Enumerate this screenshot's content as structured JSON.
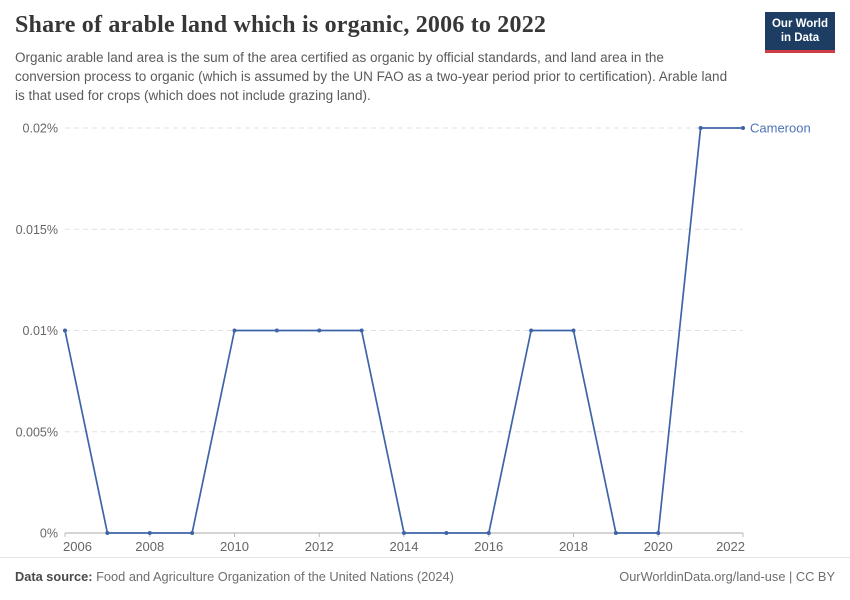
{
  "header": {
    "title": "Share of arable land which is organic, 2006 to 2022",
    "subtitle": "Organic arable land area is the sum of the area certified as organic by official standards, and land area in the conversion process to organic (which is assumed by the UN FAO as a two-year period prior to certification). Arable land is that used for crops (which does not include grazing land).",
    "logo": {
      "line1": "Our World",
      "line2": "in Data",
      "bg_color": "#1d3d63",
      "accent_color": "#d13d43",
      "text_color": "#ffffff"
    }
  },
  "chart_data": {
    "type": "line",
    "title": "Share of arable land which is organic, 2006 to 2022",
    "xlabel": "",
    "ylabel": "",
    "unit": "%",
    "entity": "Cameroon",
    "x": [
      2006,
      2007,
      2008,
      2009,
      2010,
      2011,
      2012,
      2013,
      2014,
      2015,
      2016,
      2017,
      2018,
      2019,
      2020,
      2021,
      2022
    ],
    "series": [
      {
        "name": "Cameroon",
        "values": [
          0.01,
          0,
          0,
          0,
          0.01,
          0.01,
          0.01,
          0.01,
          0,
          0,
          0,
          0.01,
          0.01,
          0,
          0,
          0.02,
          0.02
        ]
      }
    ],
    "xlim": [
      2006,
      2022
    ],
    "ylim": [
      0,
      0.02
    ],
    "xticks": [
      2006,
      2008,
      2010,
      2012,
      2014,
      2016,
      2018,
      2020,
      2022
    ],
    "yticks": [
      0,
      0.005,
      0.01,
      0.015,
      0.02
    ],
    "ytick_labels": [
      "0%",
      "0.005%",
      "0.01%",
      "0.015%",
      "0.02%"
    ],
    "grid": "horizontal-dashed",
    "legend_position": "end-of-line-label",
    "colors": {
      "line": "#3e64a8",
      "marker": "#3e64a8",
      "series_label": "#4e73b8",
      "grid": "#e0e0e0",
      "axis": "#a8a8a8",
      "tick": "#bbbbbb",
      "tick_label": "#666666"
    }
  },
  "footer": {
    "datasource_label": "Data source:",
    "datasource_value": "Food and Agriculture Organization of the United Nations (2024)",
    "link": "OurWorldinData.org/land-use",
    "separator": " | ",
    "license": "CC BY"
  }
}
